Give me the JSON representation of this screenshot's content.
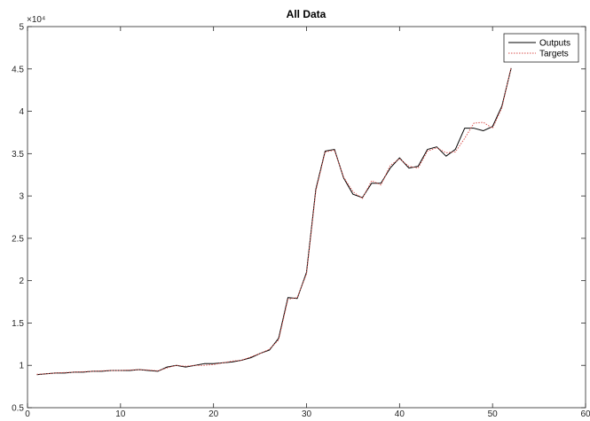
{
  "chart_data": {
    "type": "line",
    "title": "All Data",
    "xlabel": "",
    "ylabel": "",
    "xlim": [
      0,
      60
    ],
    "ylim": [
      5000,
      50000
    ],
    "xticks": [
      0,
      10,
      20,
      30,
      40,
      50,
      60
    ],
    "xtick_labels": [
      "0",
      "10",
      "20",
      "30",
      "40",
      "50",
      "60"
    ],
    "yticks": [
      5000,
      10000,
      15000,
      20000,
      25000,
      30000,
      35000,
      40000,
      45000,
      50000
    ],
    "ytick_labels": [
      "0.5",
      "1",
      "1.5",
      "2",
      "2.5",
      "3",
      "3.5",
      "4",
      "4.5",
      "5"
    ],
    "y_exponent_label": "×10⁴",
    "grid": false,
    "legend_position": "top-right",
    "x": [
      1,
      2,
      3,
      4,
      5,
      6,
      7,
      8,
      9,
      10,
      11,
      12,
      13,
      14,
      15,
      16,
      17,
      18,
      19,
      20,
      21,
      22,
      23,
      24,
      25,
      26,
      27,
      28,
      29,
      30,
      31,
      32,
      33,
      34,
      35,
      36,
      37,
      38,
      39,
      40,
      41,
      42,
      43,
      44,
      45,
      46,
      47,
      48,
      49,
      50,
      51,
      52
    ],
    "series": [
      {
        "name": "Outputs",
        "color": "#000000",
        "dash": "solid",
        "values": [
          8900,
          9000,
          9100,
          9100,
          9200,
          9200,
          9300,
          9300,
          9400,
          9400,
          9400,
          9500,
          9400,
          9300,
          9800,
          10000,
          9800,
          10000,
          10200,
          10200,
          10300,
          10400,
          10600,
          10900,
          11400,
          11800,
          13200,
          18000,
          17900,
          21000,
          30800,
          35300,
          35500,
          32100,
          30200,
          29800,
          31500,
          31500,
          33300,
          34500,
          33300,
          33500,
          35500,
          35800,
          34700,
          35500,
          38000,
          38000,
          37700,
          38200,
          40600,
          45100
        ]
      },
      {
        "name": "Targets",
        "color": "#d9534f",
        "dash": "dotted",
        "values": [
          8950,
          9000,
          9100,
          9150,
          9200,
          9250,
          9300,
          9350,
          9400,
          9400,
          9450,
          9500,
          9450,
          9350,
          9700,
          10000,
          9900,
          10000,
          10000,
          10100,
          10300,
          10500,
          10600,
          11000,
          11400,
          11900,
          13000,
          17800,
          18000,
          20800,
          30600,
          35200,
          35400,
          32200,
          30500,
          29700,
          31800,
          31300,
          33600,
          34400,
          33500,
          33300,
          35300,
          35700,
          35100,
          35200,
          36800,
          38600,
          38700,
          38000,
          40400,
          45200
        ]
      }
    ]
  }
}
